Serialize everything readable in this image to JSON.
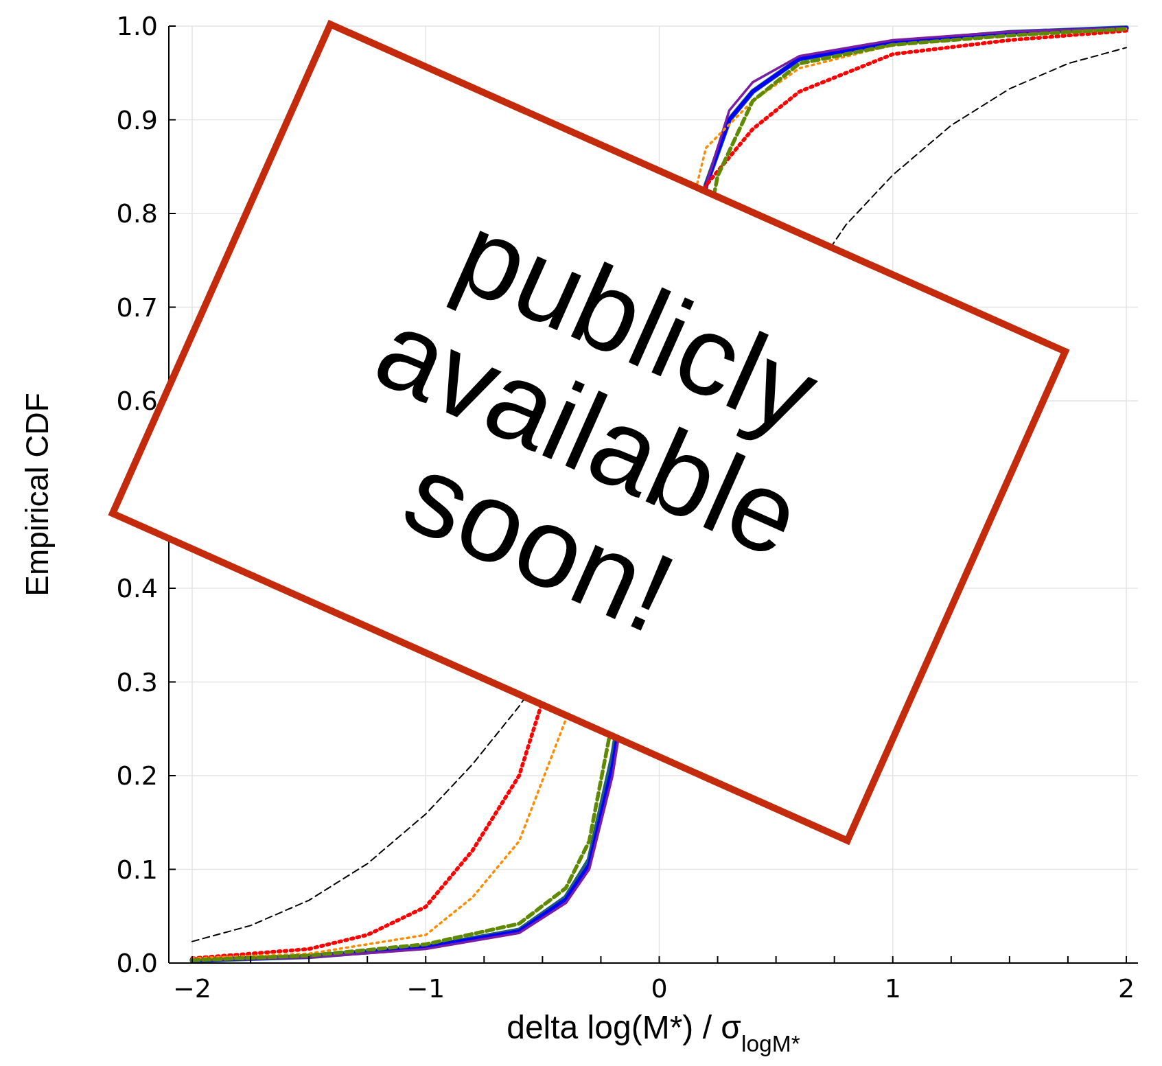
{
  "chart_data": {
    "type": "line",
    "xlabel": "delta log(M*) / σ$_{logM*}$",
    "ylabel": "Empirical CDF",
    "xlim": [
      -2.1,
      2.05
    ],
    "ylim": [
      0,
      1
    ],
    "xticks": [
      {
        "value": -2,
        "label": "−2"
      },
      {
        "value": -1.75,
        "label": null
      },
      {
        "value": -1.5,
        "label": null
      },
      {
        "value": -1.25,
        "label": null
      },
      {
        "value": -1,
        "label": "−1"
      },
      {
        "value": -0.75,
        "label": null
      },
      {
        "value": -0.5,
        "label": null
      },
      {
        "value": -0.25,
        "label": null
      },
      0,
      {
        "value": 0.25,
        "label": null
      },
      {
        "value": 0.5,
        "label": null
      },
      {
        "value": 0.75,
        "label": null
      },
      1,
      {
        "value": 1.25,
        "label": null
      },
      {
        "value": 1.5,
        "label": null
      },
      {
        "value": 1.75,
        "label": null
      },
      2
    ],
    "yticks": [
      {
        "value": 0,
        "label": "0.0"
      },
      0.1,
      0.2,
      0.3,
      0.4,
      {
        "value": 0.5,
        "label": null
      },
      0.6,
      0.7,
      0.8,
      0.9,
      {
        "value": 1,
        "label": "1.0"
      }
    ],
    "grid": true,
    "series": [
      {
        "color": "#ff0000",
        "line_style": "dotted",
        "x": [
          -2,
          -1.5,
          -1.25,
          -1,
          -0.8,
          -0.6,
          -0.55,
          0.2,
          0.4,
          0.6,
          1,
          1.5,
          2
        ],
        "values": [
          0.005,
          0.015,
          0.03,
          0.06,
          0.12,
          0.2,
          0.24,
          0.83,
          0.89,
          0.93,
          0.97,
          0.985,
          0.995
        ]
      },
      {
        "color": "#ff8c00",
        "line_style": "dotted",
        "x": [
          -2,
          -1.5,
          -1,
          -0.8,
          -0.6,
          -0.4,
          0.2,
          0.4,
          0.6,
          1,
          1.5,
          2
        ],
        "values": [
          0.005,
          0.01,
          0.03,
          0.07,
          0.13,
          0.26,
          0.87,
          0.92,
          0.955,
          0.98,
          0.99,
          0.997
        ]
      },
      {
        "color": "#5f8a00",
        "line_style": "dashed",
        "x": [
          -2,
          -1.5,
          -1,
          -0.6,
          -0.4,
          -0.3,
          0.25,
          0.4,
          0.6,
          1,
          1.5,
          2
        ],
        "values": [
          0.003,
          0.008,
          0.02,
          0.042,
          0.08,
          0.13,
          0.84,
          0.92,
          0.96,
          0.98,
          0.99,
          0.997
        ]
      },
      {
        "color": "#1f5f7a",
        "line_style": "solid",
        "x": [
          -2,
          -1.5,
          -1,
          -0.6,
          -0.4,
          -0.3,
          -0.2,
          0.2,
          0.3,
          0.4,
          0.6,
          1,
          1.5,
          2
        ],
        "values": [
          0.003,
          0.007,
          0.017,
          0.035,
          0.07,
          0.11,
          0.22,
          0.83,
          0.9,
          0.93,
          0.965,
          0.982,
          0.993,
          0.998
        ]
      },
      {
        "color": "#0000ff",
        "line_style": "solid",
        "x": [
          -2,
          -1.5,
          -1,
          -0.6,
          -0.4,
          -0.3,
          -0.2,
          0.2,
          0.3,
          0.4,
          0.6,
          1,
          1.5,
          2
        ],
        "values": [
          0.003,
          0.007,
          0.017,
          0.034,
          0.068,
          0.105,
          0.21,
          0.83,
          0.9,
          0.93,
          0.965,
          0.983,
          0.993,
          0.998
        ]
      },
      {
        "color": "#7b1fa2",
        "line_style": "solid",
        "x": [
          -2,
          -1.5,
          -1,
          -0.6,
          -0.4,
          -0.3,
          -0.2,
          0.2,
          0.3,
          0.4,
          0.6,
          1,
          1.5,
          2
        ],
        "values": [
          0.003,
          0.006,
          0.015,
          0.032,
          0.064,
          0.1,
          0.2,
          0.83,
          0.91,
          0.94,
          0.968,
          0.985,
          0.994,
          0.998
        ]
      },
      {
        "color": "#000000",
        "line_style": "dashed",
        "x": [
          -2,
          -1.75,
          -1.5,
          -1.25,
          -1,
          -0.8,
          -0.6,
          0.8,
          1,
          1.25,
          1.5,
          1.75,
          2
        ],
        "values": [
          0.023,
          0.04,
          0.067,
          0.106,
          0.159,
          0.212,
          0.274,
          0.788,
          0.841,
          0.894,
          0.933,
          0.96,
          0.977
        ]
      }
    ],
    "annotations": [
      "publicly available soon!"
    ]
  }
}
